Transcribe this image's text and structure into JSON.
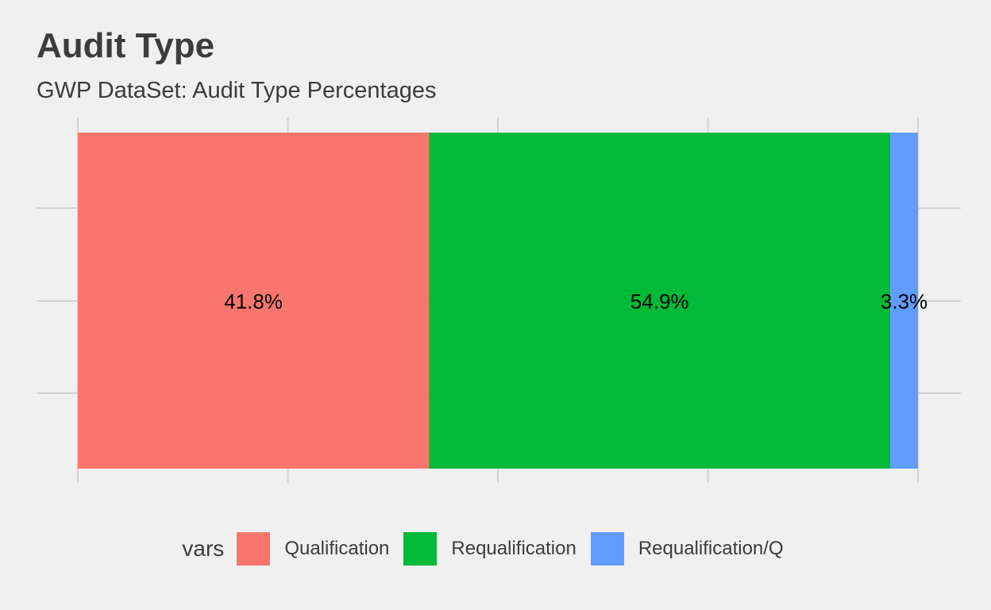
{
  "title": "Audit Type",
  "subtitle": "GWP DataSet: Audit Type Percentages",
  "legend": {
    "title": "vars",
    "placement": "bottom"
  },
  "chart_data": {
    "type": "bar",
    "orientation": "horizontal-stacked",
    "title": "Audit Type",
    "subtitle": "GWP DataSet: Audit Type Percentages",
    "xlabel": "",
    "ylabel": "",
    "xlim": [
      0,
      100
    ],
    "grid": true,
    "legend_title": "vars",
    "legend_placement": "bottom",
    "series": [
      {
        "name": "Qualification",
        "value": 41.8,
        "label": "41.8%",
        "color": "#F8766D"
      },
      {
        "name": "Requalification",
        "value": 54.9,
        "label": "54.9%",
        "color": "#00BA38"
      },
      {
        "name": "Requalification/Q",
        "value": 3.3,
        "label": "3.3%",
        "color": "#619CFF"
      }
    ]
  }
}
